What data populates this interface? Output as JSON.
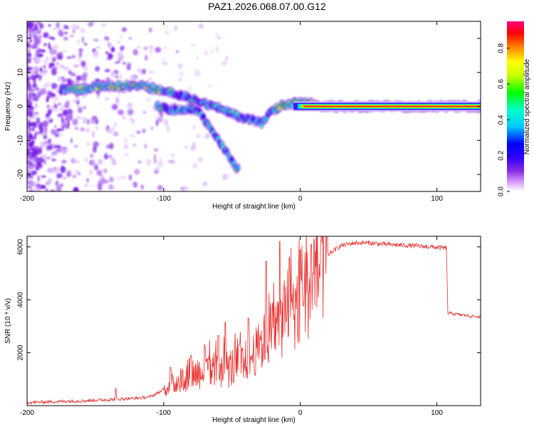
{
  "title": "PAZ1.2026.068.07.00.G12",
  "chart_data": [
    {
      "type": "heatmap",
      "name": "spectrogram",
      "xlabel": "Height of straight line (km)",
      "ylabel": "Frequency (Hz)",
      "xlim": [
        -200,
        132
      ],
      "ylim": [
        -25,
        25
      ],
      "x_ticks": [
        -200,
        -100,
        0,
        100
      ],
      "y_ticks": [
        -20,
        -10,
        0,
        10,
        20
      ],
      "colorbar": {
        "label": "Normalized spectral amplitude",
        "range": [
          0,
          0.95
        ],
        "ticks": [
          0.0,
          0.2,
          0.4,
          0.6,
          0.8
        ],
        "colors": [
          "#ffffff",
          "#dca6ff",
          "#8a2be2",
          "#3000ff",
          "#0000ff",
          "#00c8ff",
          "#00ffc8",
          "#00ff00",
          "#c8ff00",
          "#ffff00",
          "#ff8000",
          "#ff0000",
          "#ff0080"
        ]
      },
      "tracks": [
        {
          "name": "main-track",
          "points": [
            [
              -175,
              5
            ],
            [
              -160,
              5
            ],
            [
              -145,
              6
            ],
            [
              -130,
              6
            ],
            [
              -115,
              6
            ],
            [
              -105,
              5
            ],
            [
              -95,
              4
            ],
            [
              -85,
              3
            ],
            [
              -75,
              2
            ],
            [
              -65,
              0
            ],
            [
              -55,
              -1
            ],
            [
              -45,
              -3
            ],
            [
              -35,
              -4
            ],
            [
              -28,
              -5
            ],
            [
              -22,
              -2
            ],
            [
              -15,
              0
            ],
            [
              -5,
              1
            ],
            [
              5,
              1
            ],
            [
              15,
              0
            ],
            [
              132,
              0
            ]
          ]
        },
        {
          "name": "lower-branch",
          "points": [
            [
              -105,
              0
            ],
            [
              -95,
              -1
            ],
            [
              -85,
              -1
            ],
            [
              -75,
              -1
            ],
            [
              -70,
              -4
            ],
            [
              -65,
              -7
            ],
            [
              -60,
              -10
            ],
            [
              -55,
              -13
            ],
            [
              -50,
              -16
            ],
            [
              -45,
              -19
            ]
          ]
        },
        {
          "name": "steady-tone",
          "points": [
            [
              10,
              0
            ],
            [
              132,
              0
            ]
          ]
        }
      ]
    },
    {
      "type": "line",
      "name": "snr",
      "xlabel": "Height of straight line (km)",
      "ylabel": "SNR (10 * v/v)",
      "xlim": [
        -200,
        132
      ],
      "ylim": [
        0,
        6400
      ],
      "x_ticks": [
        -200,
        -100,
        0,
        100
      ],
      "y_ticks": [
        2000,
        4000,
        6000
      ],
      "color": "#e8302e",
      "envelope": [
        [
          -200,
          120
        ],
        [
          -180,
          150
        ],
        [
          -160,
          180
        ],
        [
          -140,
          230
        ],
        [
          -120,
          280
        ],
        [
          -110,
          330
        ],
        [
          -100,
          600
        ],
        [
          -90,
          900
        ],
        [
          -80,
          1200
        ],
        [
          -70,
          1300
        ],
        [
          -60,
          1350
        ],
        [
          -50,
          1450
        ],
        [
          -40,
          1600
        ],
        [
          -30,
          2200
        ],
        [
          -20,
          2900
        ],
        [
          -10,
          3400
        ],
        [
          0,
          4000
        ],
        [
          10,
          4900
        ],
        [
          20,
          5700
        ],
        [
          30,
          6050
        ],
        [
          40,
          6150
        ],
        [
          50,
          6150
        ],
        [
          60,
          6100
        ],
        [
          80,
          6050
        ],
        [
          100,
          5980
        ],
        [
          107,
          5950
        ],
        [
          108,
          3500
        ],
        [
          115,
          3450
        ],
        [
          125,
          3380
        ],
        [
          132,
          3350
        ]
      ],
      "spikes": [
        [
          -170,
          200
        ],
        [
          -135,
          650
        ],
        [
          -95,
          1450
        ],
        [
          -80,
          1900
        ],
        [
          -70,
          2300
        ],
        [
          -60,
          2650
        ],
        [
          -55,
          3150
        ],
        [
          -45,
          2300
        ],
        [
          -38,
          3300
        ],
        [
          -25,
          5450
        ],
        [
          -15,
          6200
        ],
        [
          -8,
          5600
        ],
        [
          0,
          5900
        ],
        [
          8,
          6100
        ],
        [
          15,
          6250
        ]
      ]
    }
  ]
}
